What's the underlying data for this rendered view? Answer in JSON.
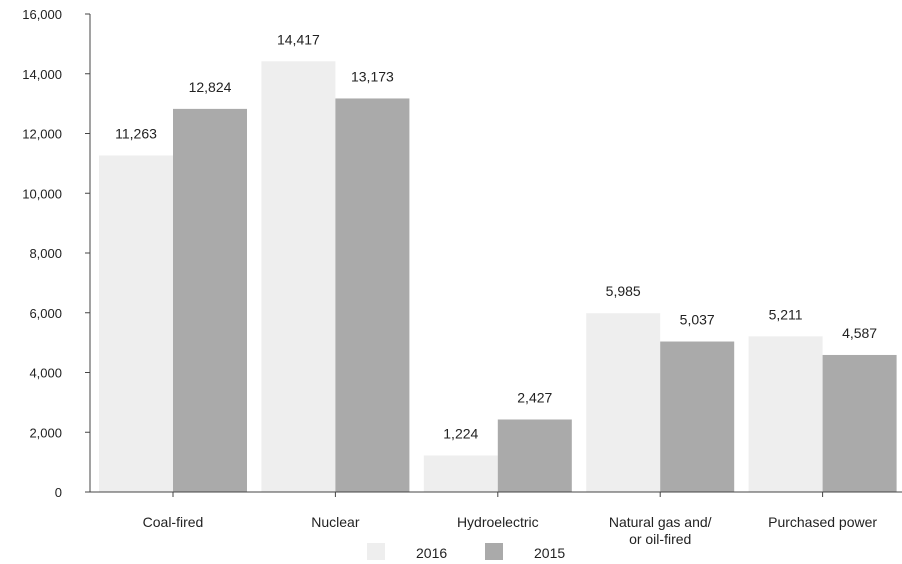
{
  "chart_data": {
    "type": "bar",
    "categories": [
      "Coal-fired",
      "Nuclear",
      "Hydroelectric",
      "Natural gas and/ or oil-fired",
      "Purchased power"
    ],
    "category_lines": [
      [
        "Coal-fired"
      ],
      [
        "Nuclear"
      ],
      [
        "Hydroelectric"
      ],
      [
        "Natural gas and/",
        "or oil-fired"
      ],
      [
        "Purchased power"
      ]
    ],
    "series": [
      {
        "name": "2016",
        "color": "#eeeeee",
        "values": [
          11263,
          14417,
          1224,
          5985,
          5211
        ],
        "labels": [
          "11,263",
          "14,417",
          "1,224",
          "5,985",
          "5,211"
        ]
      },
      {
        "name": "2015",
        "color": "#aaaaaa",
        "values": [
          12824,
          13173,
          2427,
          5037,
          4587
        ],
        "labels": [
          "12,824",
          "13,173",
          "2,427",
          "5,037",
          "4,587"
        ]
      }
    ],
    "ylim": [
      0,
      16000
    ],
    "yticks": [
      0,
      2000,
      4000,
      6000,
      8000,
      10000,
      12000,
      14000,
      16000
    ],
    "ytick_labels": [
      "0",
      "2,000",
      "4,000",
      "6,000",
      "8,000",
      "10,000",
      "12,000",
      "14,000",
      "16,000"
    ],
    "title": "",
    "xlabel": "",
    "ylabel": "",
    "grid": false,
    "legend_position": "bottom-center"
  }
}
